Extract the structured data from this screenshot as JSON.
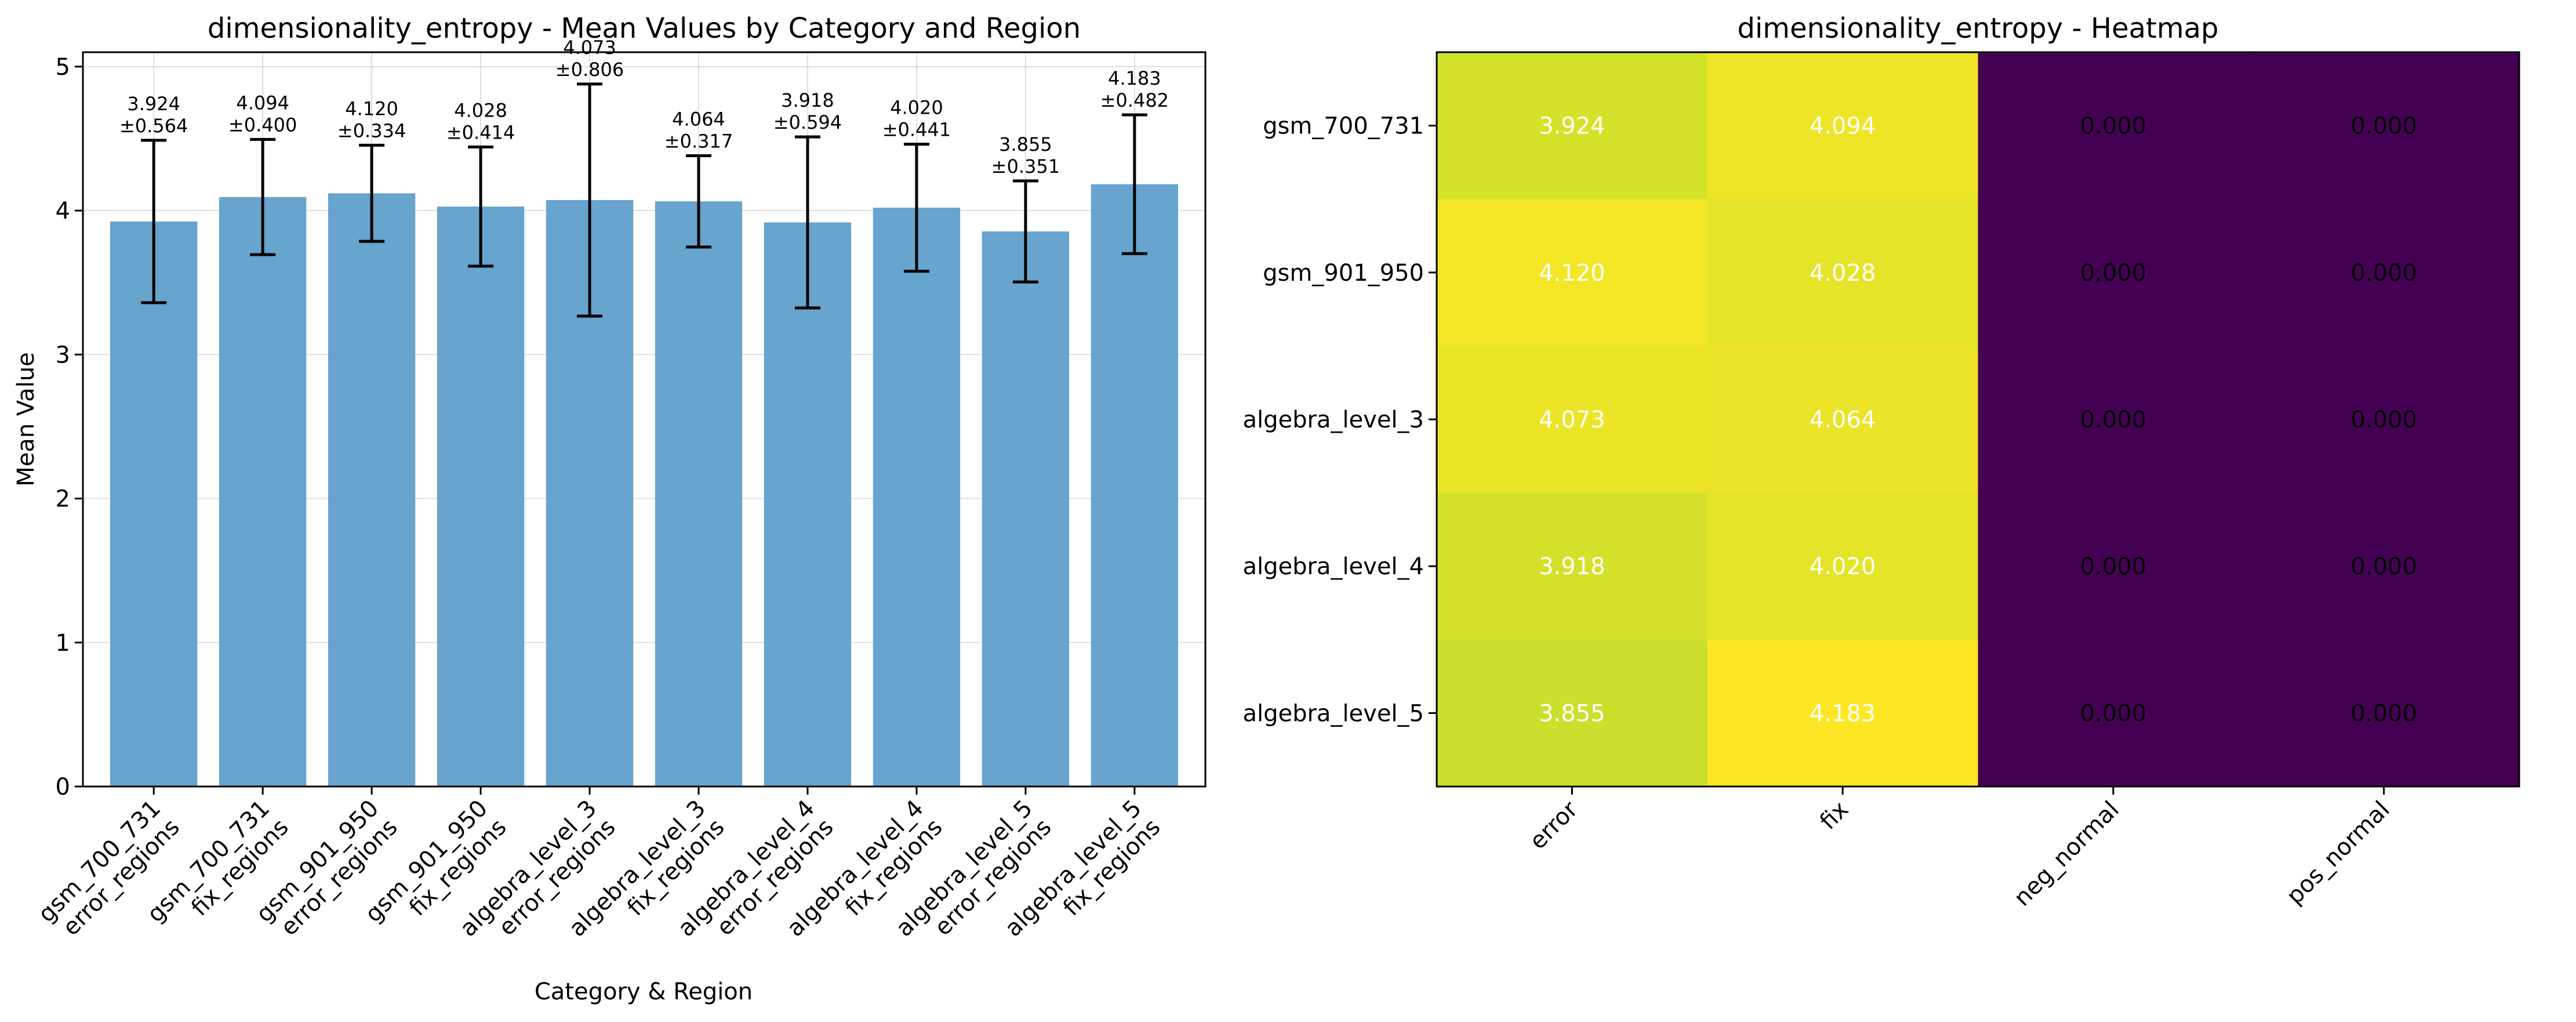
{
  "chart_data": [
    {
      "type": "bar",
      "title": "dimensionality_entropy - Mean Values by Category and Region",
      "xlabel": "Category & Region",
      "ylabel": "Mean Value",
      "ylim": [
        0,
        5.1
      ],
      "yticks": [
        "0",
        "1",
        "2",
        "3",
        "4",
        "5"
      ],
      "grid": true,
      "bar_color": "#5f9fcb",
      "categories": [
        [
          "gsm_700_731",
          "error_regions"
        ],
        [
          "gsm_700_731",
          "fix_regions"
        ],
        [
          "gsm_901_950",
          "error_regions"
        ],
        [
          "gsm_901_950",
          "fix_regions"
        ],
        [
          "algebra_level_3",
          "error_regions"
        ],
        [
          "algebra_level_3",
          "fix_regions"
        ],
        [
          "algebra_level_4",
          "error_regions"
        ],
        [
          "algebra_level_4",
          "fix_regions"
        ],
        [
          "algebra_level_5",
          "error_regions"
        ],
        [
          "algebra_level_5",
          "fix_regions"
        ]
      ],
      "values": [
        3.924,
        4.094,
        4.12,
        4.028,
        4.073,
        4.064,
        3.918,
        4.02,
        3.855,
        4.183
      ],
      "errors": [
        0.564,
        0.4,
        0.334,
        0.414,
        0.806,
        0.317,
        0.594,
        0.441,
        0.351,
        0.482
      ],
      "value_labels": [
        "3.924",
        "4.094",
        "4.120",
        "4.028",
        "4.073",
        "4.064",
        "3.918",
        "4.020",
        "3.855",
        "4.183"
      ],
      "error_labels": [
        "±0.564",
        "±0.400",
        "±0.334",
        "±0.414",
        "±0.806",
        "±0.317",
        "±0.594",
        "±0.441",
        "±0.351",
        "±0.482"
      ]
    },
    {
      "type": "heatmap",
      "title": "dimensionality_entropy - Heatmap",
      "rows": [
        "gsm_700_731",
        "gsm_901_950",
        "algebra_level_3",
        "algebra_level_4",
        "algebra_level_5"
      ],
      "columns": [
        "error",
        "fix",
        "neg_normal",
        "pos_normal"
      ],
      "values": [
        [
          3.924,
          4.094,
          0.0,
          0.0
        ],
        [
          4.12,
          4.028,
          0.0,
          0.0
        ],
        [
          4.073,
          4.064,
          0.0,
          0.0
        ],
        [
          3.918,
          4.02,
          0.0,
          0.0
        ],
        [
          3.855,
          4.183,
          0.0,
          0.0
        ]
      ],
      "labels": [
        [
          "3.924",
          "4.094",
          "0.000",
          "0.000"
        ],
        [
          "4.120",
          "4.028",
          "0.000",
          "0.000"
        ],
        [
          "4.073",
          "4.064",
          "0.000",
          "0.000"
        ],
        [
          "3.918",
          "4.020",
          "0.000",
          "0.000"
        ],
        [
          "3.855",
          "4.183",
          "0.000",
          "0.000"
        ]
      ],
      "colormap": "viridis",
      "color_range": [
        0,
        4.183
      ]
    }
  ]
}
